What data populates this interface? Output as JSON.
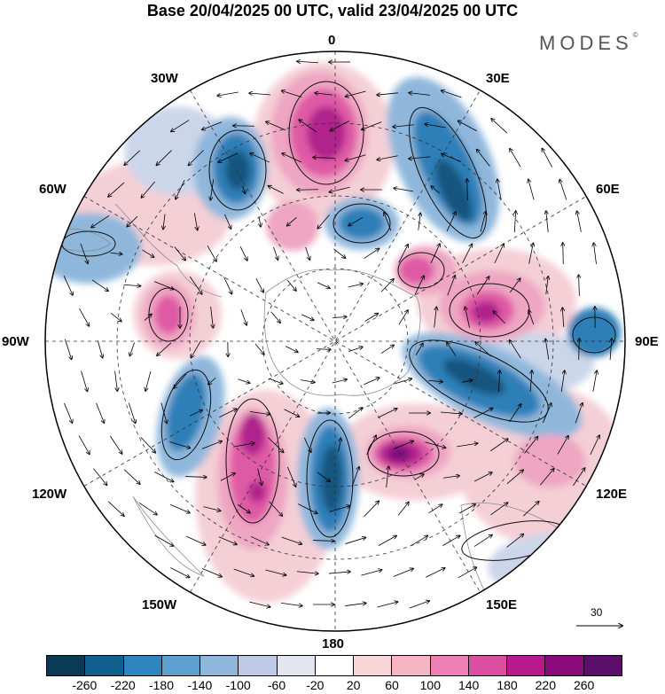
{
  "title": "Base 20/04/2025 00 UTC, valid 23/04/2025 00 UTC",
  "logo": {
    "text": "MODES",
    "mark": "©"
  },
  "longitude_labels": [
    "0",
    "30E",
    "60E",
    "90E",
    "120E",
    "150E",
    "180",
    "150W",
    "120W",
    "90W",
    "60W",
    "30W"
  ],
  "reference_vector": {
    "value": "30"
  },
  "colorbar": {
    "tick_labels": [
      "-260",
      "-220",
      "-180",
      "-140",
      "-100",
      "-60",
      "-20",
      "20",
      "60",
      "100",
      "140",
      "180",
      "220",
      "260"
    ],
    "colors": [
      "#0b3a57",
      "#12608d",
      "#2f86be",
      "#5ba0cf",
      "#8fb7dc",
      "#bfcbe6",
      "#e3e5f1",
      "#ffffff",
      "#f8d6d8",
      "#f5b5c4",
      "#ec80b4",
      "#dc4ea2",
      "#b8198d",
      "#8a0a7c",
      "#5a0f6b"
    ]
  },
  "map": {
    "projection": "south-polar-stereographic",
    "field": "height anomaly with wind vectors",
    "colors": {
      "neg_strong": "#14557e",
      "neg_mid": "#2f7fb8",
      "neg_light": "#8fb7dc",
      "neg_faint": "#ccd6ea",
      "pos_faint": "#f4cfd6",
      "pos_light": "#eea6c2",
      "pos_mid": "#df5aa5",
      "pos_strong": "#b0208c",
      "pos_max": "#7c0c7d",
      "land_gray": "#d9d9d9"
    }
  }
}
